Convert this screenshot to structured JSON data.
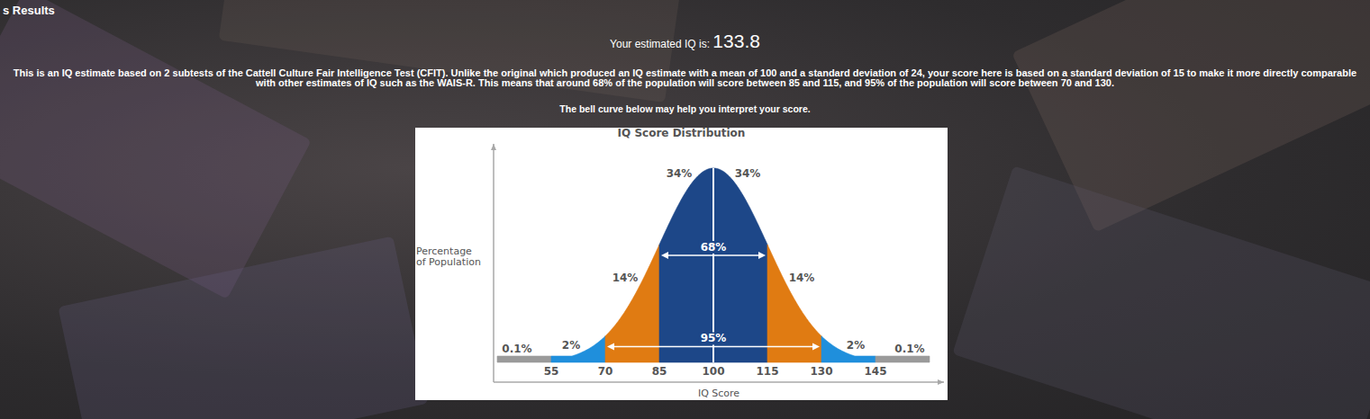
{
  "page": {
    "header": "s Results",
    "score_label": "Your estimated IQ is:",
    "score": 133.8,
    "description": "This is an IQ estimate based on 2 subtests of the Cattell Culture Fair Intelligence Test (CFIT). Unlike the original which produced an IQ estimate with a mean of 100 and a standard deviation of 24, your score here is based on a standard deviation of 15 to make it more directly comparable with other estimates of IQ such as the WAIS-R. This means that around 68% of the population will score between 85 and 115, and 95% of the population will score between 70 and 130.",
    "hint": "The bell curve below may help you interpret your score."
  },
  "chart_data": {
    "type": "bell_curve",
    "title": "IQ Score Distribution",
    "x_label": "IQ Score",
    "y_label": "Percentage of Population",
    "mean": 100,
    "sd": 15,
    "bins": [
      40,
      55,
      70,
      85,
      100,
      115,
      130,
      145,
      160
    ],
    "values": [
      0.1,
      2,
      14,
      34,
      34,
      14,
      2,
      0.1
    ],
    "value_labels": [
      "0.1%",
      "2%",
      "14%",
      "34%",
      "34%",
      "14%",
      "2%",
      "0.1%"
    ],
    "colors": [
      "#9a9a9a",
      "#1f8fdc",
      "#e07b12",
      "#1d4788",
      "#1d4788",
      "#e07b12",
      "#1f8fdc",
      "#9a9a9a"
    ],
    "xlim": [
      39,
      164
    ],
    "xticks": [
      55,
      70,
      85,
      100,
      115,
      130,
      145
    ],
    "annotations": [
      {
        "label": "68%",
        "from": 85,
        "to": 115
      },
      {
        "label": "95%",
        "from": 70,
        "to": 130
      }
    ],
    "data_labels": true,
    "tick_labels": "x",
    "grid": false
  }
}
